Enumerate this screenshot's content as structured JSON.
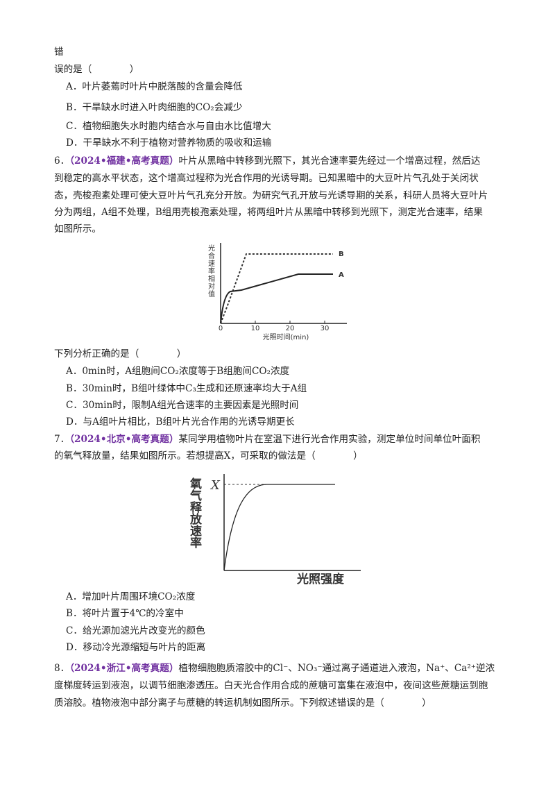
{
  "lines_before": [
    "错",
    "误的是（　　　　）"
  ],
  "q5_options": [
    "A．叶片萎蔫时叶片中脱落酸的含量会降低",
    "B．干旱缺水时进入叶肉细胞的CO₂会减少",
    "C．植物细胞失水时胞内结合水与自由水比值增大",
    "D．干旱缺水不利于植物对营养物质的吸收和运输"
  ],
  "q6": {
    "number": "6．",
    "source": "（2024•福建•高考真题）",
    "stem": [
      "叶片从黑暗中转移到光照下，其光合速率要先经过一个增高过程，然后达",
      "到稳定的高水平状态，这个增高过程称为光合作用的光诱导期。已知黑暗中的大豆叶片气孔处于关闭状",
      "态，壳梭孢素处理可使大豆叶片气孔充分开放。为研究气孔开放与光诱导期的关系，科研人员将大豆叶片",
      "分为两组，A组不处理，B组用壳梭孢素处理，将两组叶片从黑暗中转移到光照下，测定光合速率，结果",
      "如图所示。"
    ],
    "figure": {
      "y_label": "光合速率相对值",
      "x_label": "光照时间(min)",
      "x_ticks": [
        0,
        10,
        20,
        30
      ],
      "curve_labels": [
        "B",
        "A"
      ]
    },
    "question": "下列分析正确的是（　　　　）",
    "options": [
      "A．0min时，A组胞间CO₂浓度等于B组胞间CO₂浓度",
      "B．30min时，B组叶绿体中C₃生成和还原速率均大于A组",
      "C．30min时，限制A组光合速率的主要因素是光照时间",
      "D．与A组叶片相比，B组叶片光合作用的光诱导期更长"
    ]
  },
  "q7": {
    "number": "7．",
    "source": "（2024•北京•高考真题）",
    "stem": [
      "某同学用植物叶片在室温下进行光合作用实验，测定单位时间单位叶面积",
      "的氧气释放量，结果如图所示。若想提高X，可采取的做法是（　　　　）"
    ],
    "figure": {
      "y_label": "氧气释放速率",
      "x_label": "光照强度",
      "max_label": "X"
    },
    "options": [
      "A．增加叶片周围环境CO₂浓度",
      "B．将叶片置于4℃的冷室中",
      "C．给光源加滤光片改变光的颜色",
      "D．移动冷光源缩短与叶片的距离"
    ]
  },
  "q8": {
    "number": "8．",
    "source": "（2024•浙江•高考真题）",
    "stem": [
      "植物细胞胞质溶胶中的Cl⁻、NO₃⁻通过离子通道进入液泡，Na⁺、Ca²⁺逆浓",
      "度梯度转运到液泡，以调节细胞渗透压。白天光合作用合成的蔗糖可富集在液泡中，夜间这些蔗糖运到胞",
      "质溶胶。植物液泡中部分离子与蔗糖的转运机制如图所示。下列叙述错误的是（　　　　）"
    ]
  }
}
